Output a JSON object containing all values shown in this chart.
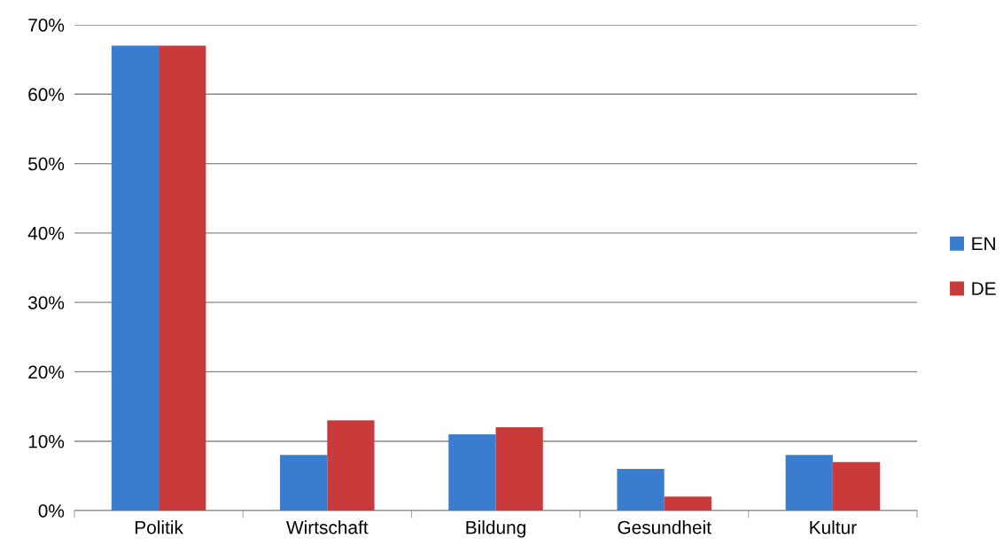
{
  "chart_data": {
    "type": "bar",
    "categories": [
      "Politik",
      "Wirtschaft",
      "Bildung",
      "Gesundheit",
      "Kultur"
    ],
    "series": [
      {
        "name": "EN",
        "color": "#3a7dcf",
        "values": [
          67,
          8,
          11,
          6,
          8
        ]
      },
      {
        "name": "DE",
        "color": "#c93b3a",
        "values": [
          67,
          13,
          12,
          2,
          7
        ]
      }
    ],
    "ylim": [
      0,
      70
    ],
    "yticks": [
      {
        "value": 0,
        "label": "0%"
      },
      {
        "value": 10,
        "label": "10%"
      },
      {
        "value": 20,
        "label": "20%"
      },
      {
        "value": 30,
        "label": "30%"
      },
      {
        "value": 40,
        "label": "40%"
      },
      {
        "value": 50,
        "label": "50%"
      },
      {
        "value": 60,
        "label": "60%"
      },
      {
        "value": 70,
        "label": "70%"
      }
    ],
    "grid": "y",
    "legend": "right"
  }
}
